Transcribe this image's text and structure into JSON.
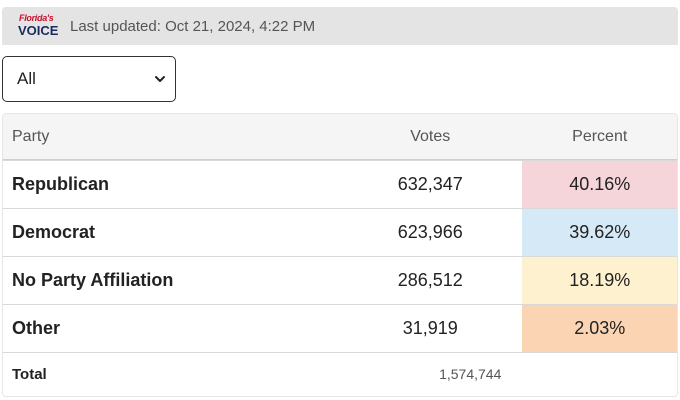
{
  "header": {
    "logo_top": "Florida's",
    "logo_bottom": "VOICE",
    "updated": "Last updated: Oct 21, 2024, 4:22 PM"
  },
  "filter": {
    "selected": "All"
  },
  "table": {
    "columns": [
      "Party",
      "Votes",
      "Percent"
    ],
    "rows": [
      {
        "party": "Republican",
        "votes": "632,347",
        "percent": "40.16%",
        "color": "#f5d4da"
      },
      {
        "party": "Democrat",
        "votes": "623,966",
        "percent": "39.62%",
        "color": "#d6e9f6"
      },
      {
        "party": "No Party Affiliation",
        "votes": "286,512",
        "percent": "18.19%",
        "color": "#fdf1cf"
      },
      {
        "party": "Other",
        "votes": "31,919",
        "percent": "2.03%",
        "color": "#fbd4b4"
      }
    ],
    "total_label": "Total",
    "total_value": "1,574,744"
  }
}
